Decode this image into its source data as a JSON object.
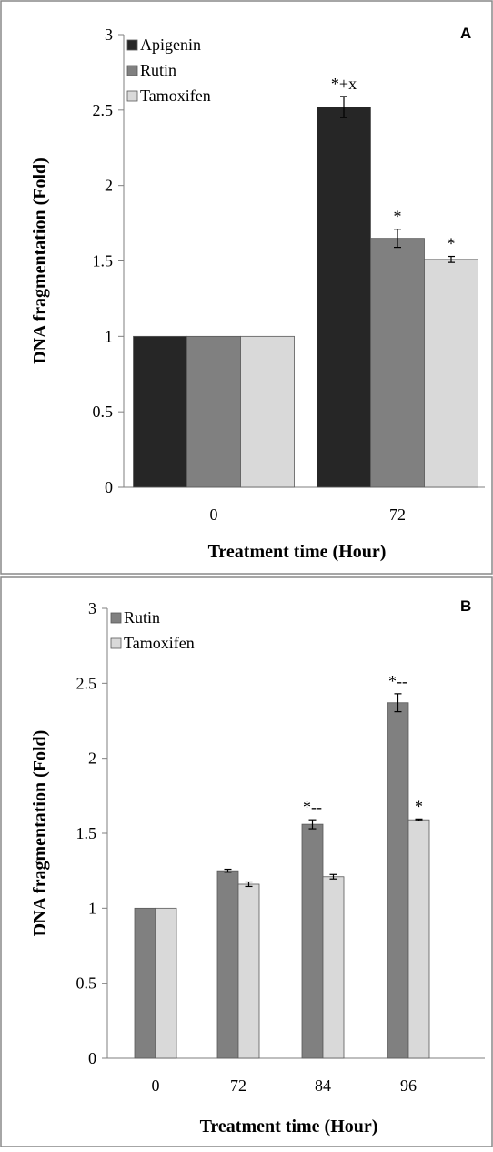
{
  "chart_data": [
    {
      "type": "bar",
      "panel_label": "A",
      "categories": [
        "0",
        "72"
      ],
      "series": [
        {
          "name": "Apigenin",
          "values": [
            1.0,
            2.52
          ],
          "errors": [
            0,
            0.07
          ],
          "annotations": [
            "",
            "*+x"
          ],
          "color": "#262626"
        },
        {
          "name": "Rutin",
          "values": [
            1.0,
            1.65
          ],
          "errors": [
            0,
            0.06
          ],
          "annotations": [
            "",
            "*"
          ],
          "color": "#808080"
        },
        {
          "name": "Tamoxifen",
          "values": [
            1.0,
            1.51
          ],
          "errors": [
            0,
            0.02
          ],
          "annotations": [
            "",
            "*"
          ],
          "color": "#d9d9d9"
        }
      ],
      "xlabel": "Treatment time (Hour)",
      "ylabel": "DNA fragmentation (Fold)",
      "ylim": [
        0,
        3
      ],
      "yticks": [
        "0",
        "0.5",
        "1",
        "1.5",
        "2",
        "2.5",
        "3"
      ],
      "grid": false,
      "legend": "top-left"
    },
    {
      "type": "bar",
      "panel_label": "B",
      "categories": [
        "0",
        "72",
        "84",
        "96"
      ],
      "series": [
        {
          "name": "Rutin",
          "values": [
            1.0,
            1.25,
            1.56,
            2.37
          ],
          "errors": [
            0,
            0.01,
            0.03,
            0.06
          ],
          "annotations": [
            "",
            "",
            "*--",
            "*--"
          ],
          "color": "#808080"
        },
        {
          "name": "Tamoxifen",
          "values": [
            1.0,
            1.16,
            1.21,
            1.59
          ],
          "errors": [
            0,
            0.015,
            0.015,
            0.005
          ],
          "annotations": [
            "",
            "",
            "",
            "*"
          ],
          "color": "#d9d9d9"
        }
      ],
      "xlabel": "Treatment time (Hour)",
      "ylabel": "DNA fragmentation (Fold)",
      "ylim": [
        0,
        3
      ],
      "yticks": [
        "0",
        "0.5",
        "1",
        "1.5",
        "2",
        "2.5",
        "3"
      ],
      "grid": false,
      "legend": "top-left"
    }
  ]
}
